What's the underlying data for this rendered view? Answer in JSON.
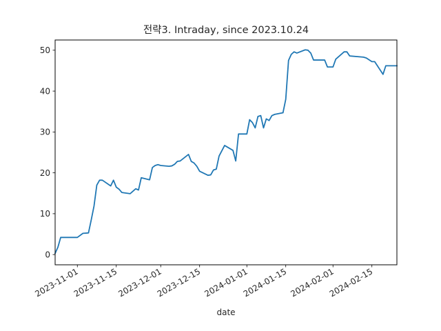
{
  "chart_data": {
    "type": "line",
    "title": "전략3. Intraday, since 2023.10.24",
    "xlabel": "date",
    "ylabel": "",
    "ylim": [
      -2.5,
      52.5
    ],
    "xlim": [
      "2023-10-24",
      "2024-02-24"
    ],
    "x_ticks": [
      "2023-11-01",
      "2023-11-15",
      "2023-12-01",
      "2023-12-15",
      "2024-01-01",
      "2024-01-15",
      "2024-02-01",
      "2024-02-15"
    ],
    "y_ticks": [
      0,
      10,
      20,
      30,
      40,
      50
    ],
    "grid": false,
    "line_color": "#1f77b4",
    "series": [
      {
        "x": [
          "2023-10-24",
          "2023-10-25",
          "2023-10-26",
          "2023-10-31",
          "2023-11-01",
          "2023-11-03",
          "2023-11-05",
          "2023-11-06",
          "2023-11-07",
          "2023-11-08",
          "2023-11-09",
          "2023-11-10",
          "2023-11-13",
          "2023-11-14",
          "2023-11-15",
          "2023-11-16",
          "2023-11-17",
          "2023-11-20",
          "2023-11-21",
          "2023-11-22",
          "2023-11-23",
          "2023-11-24",
          "2023-11-27",
          "2023-11-28",
          "2023-11-29",
          "2023-11-30",
          "2023-12-01",
          "2023-12-04",
          "2023-12-05",
          "2023-12-06",
          "2023-12-07",
          "2023-12-08",
          "2023-12-11",
          "2023-12-12",
          "2023-12-13",
          "2023-12-14",
          "2023-12-15",
          "2023-12-18",
          "2023-12-19",
          "2023-12-20",
          "2023-12-21",
          "2023-12-22",
          "2023-12-24",
          "2023-12-26",
          "2023-12-27",
          "2023-12-28",
          "2023-12-29",
          "2023-12-30",
          "2024-01-01",
          "2024-01-02",
          "2024-01-03",
          "2024-01-04",
          "2024-01-05",
          "2024-01-06",
          "2024-01-07",
          "2024-01-08",
          "2024-01-09",
          "2024-01-10",
          "2024-01-11",
          "2024-01-14",
          "2024-01-15",
          "2024-01-16",
          "2024-01-17",
          "2024-01-18",
          "2024-01-19",
          "2024-01-22",
          "2024-01-23",
          "2024-01-24",
          "2024-01-25",
          "2024-01-26",
          "2024-01-29",
          "2024-01-30",
          "2024-01-31",
          "2024-02-01",
          "2024-02-02",
          "2024-02-05",
          "2024-02-06",
          "2024-02-07",
          "2024-02-12",
          "2024-02-13",
          "2024-02-15",
          "2024-02-16",
          "2024-02-19",
          "2024-02-20",
          "2024-02-24"
        ],
        "y": [
          0.3,
          1.8,
          4.2,
          4.2,
          4.2,
          5.2,
          5.3,
          8.5,
          11.9,
          17.0,
          18.2,
          18.2,
          16.8,
          18.2,
          16.5,
          16.0,
          15.2,
          14.9,
          15.5,
          16.1,
          15.8,
          18.8,
          18.3,
          21.3,
          21.8,
          22.0,
          21.8,
          21.6,
          21.7,
          22.1,
          22.8,
          22.9,
          24.5,
          22.8,
          22.4,
          21.6,
          20.4,
          19.4,
          19.5,
          20.7,
          20.9,
          24.1,
          26.7,
          25.9,
          25.5,
          22.9,
          29.5,
          29.5,
          29.5,
          33.0,
          32.3,
          31.0,
          33.8,
          34.0,
          31.0,
          33.2,
          32.8,
          34.0,
          34.3,
          34.7,
          38.0,
          47.5,
          49.0,
          49.6,
          49.3,
          50.1,
          50.0,
          49.3,
          47.6,
          47.6,
          47.6,
          45.9,
          45.9,
          45.9,
          47.8,
          49.6,
          49.6,
          48.6,
          48.3,
          48.1,
          47.2,
          47.2,
          44.1,
          46.2,
          46.2
        ]
      }
    ]
  }
}
